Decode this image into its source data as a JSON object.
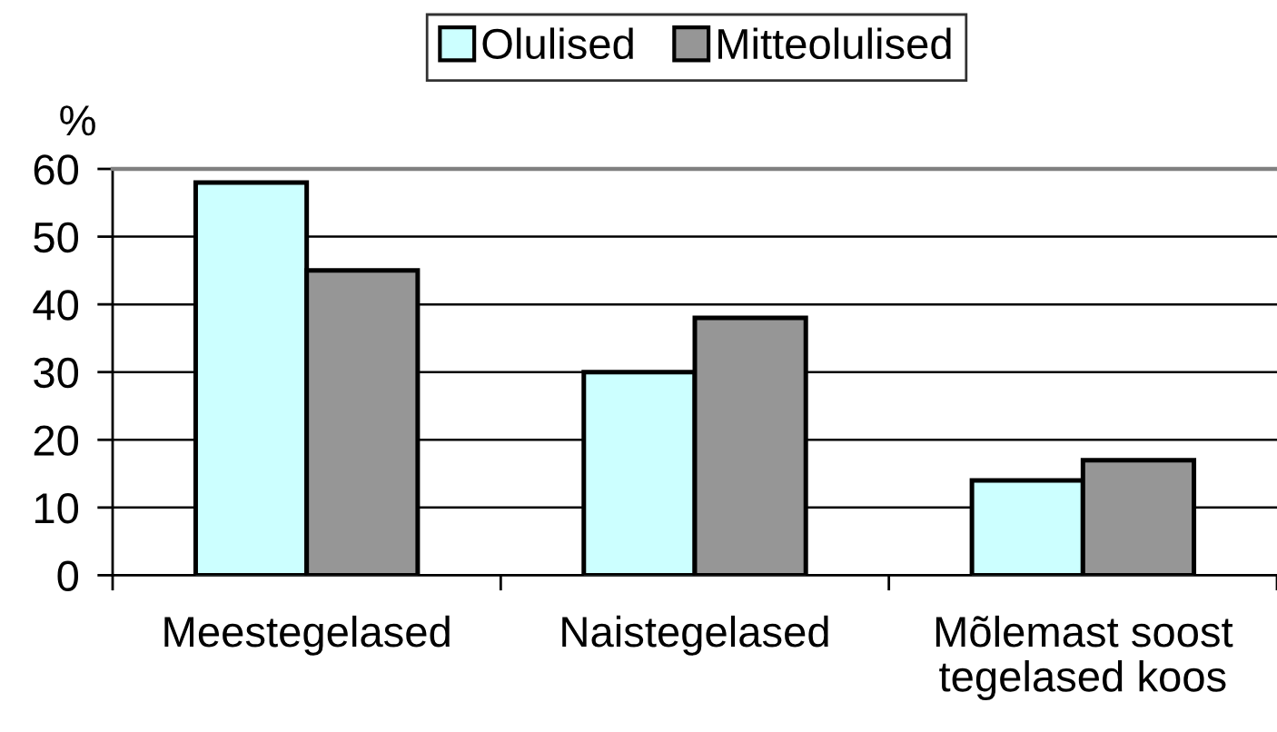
{
  "chart_data": {
    "type": "bar",
    "ylabel": "%",
    "categories": [
      "Meestegelased",
      "Naistegelased",
      "Mõlemast soost\ntegelased koos"
    ],
    "series": [
      {
        "name": "Olulised",
        "color": "#ccffff",
        "values": [
          58,
          30,
          14
        ]
      },
      {
        "name": "Mitteolulised",
        "color": "#969696",
        "values": [
          45,
          38,
          17
        ]
      }
    ],
    "ylim": [
      0,
      60
    ],
    "yticks": [
      0,
      10,
      20,
      30,
      40,
      50,
      60
    ],
    "grid": "y",
    "legend": "top"
  }
}
